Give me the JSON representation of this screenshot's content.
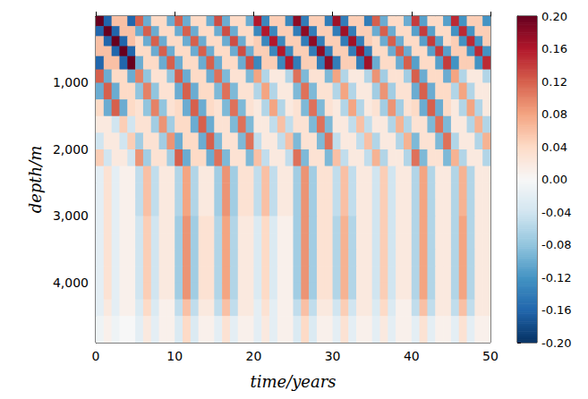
{
  "chart_data": {
    "type": "heatmap",
    "xlabel": "time/years",
    "ylabel": "depth/m",
    "xlim": [
      0,
      50
    ],
    "xticks": [
      0,
      10,
      20,
      30,
      40,
      50
    ],
    "ylim": [
      4900,
      0
    ],
    "yticks": [
      1000,
      2000,
      3000,
      4000
    ],
    "x_edges": [
      0,
      1,
      2,
      3,
      4,
      5,
      6,
      7,
      8,
      9,
      10,
      11,
      12,
      13,
      14,
      15,
      16,
      17,
      18,
      19,
      20,
      21,
      22,
      23,
      24,
      25,
      26,
      27,
      28,
      29,
      30,
      31,
      32,
      33,
      34,
      35,
      36,
      37,
      38,
      39,
      40,
      41,
      42,
      43,
      44,
      45,
      46,
      47,
      48,
      49,
      50
    ],
    "y_edges": [
      0,
      150,
      300,
      450,
      600,
      800,
      1000,
      1250,
      1500,
      1750,
      2000,
      2250,
      2500,
      2750,
      3000,
      3250,
      3500,
      3750,
      4000,
      4250,
      4500,
      4900
    ],
    "values": [
      [
        0.2,
        -0.16,
        0.06,
        0.06,
        -0.16,
        0.12,
        -0.1,
        0.04,
        0.04,
        -0.1,
        0.12,
        -0.1,
        0.04,
        0.04,
        -0.1,
        0.13,
        -0.1,
        0.04,
        0.04,
        -0.1,
        0.16,
        -0.13,
        0.05,
        0.05,
        -0.13,
        0.18,
        -0.14,
        0.05,
        0.05,
        -0.14,
        0.17,
        -0.14,
        0.05,
        0.05,
        -0.14,
        0.12,
        -0.1,
        0.04,
        0.04,
        -0.1,
        0.14,
        -0.11,
        0.04,
        0.04,
        -0.11,
        0.15,
        -0.12,
        0.05,
        0.05,
        -0.12
      ],
      [
        -0.16,
        0.2,
        -0.16,
        0.06,
        0.06,
        -0.1,
        0.12,
        -0.1,
        0.04,
        0.04,
        -0.1,
        0.12,
        -0.1,
        0.04,
        0.04,
        -0.1,
        0.13,
        -0.1,
        0.04,
        0.04,
        -0.13,
        0.16,
        -0.13,
        0.05,
        0.05,
        -0.14,
        0.18,
        -0.14,
        0.05,
        0.05,
        -0.14,
        0.17,
        -0.14,
        0.05,
        0.05,
        -0.1,
        0.12,
        -0.1,
        0.04,
        0.04,
        -0.11,
        0.14,
        -0.11,
        0.04,
        0.04,
        -0.12,
        0.15,
        -0.12,
        0.05,
        0.05
      ],
      [
        0.06,
        -0.16,
        0.2,
        -0.16,
        0.06,
        0.04,
        -0.1,
        0.12,
        -0.1,
        0.04,
        0.04,
        -0.1,
        0.12,
        -0.1,
        0.04,
        0.04,
        -0.1,
        0.13,
        -0.1,
        0.04,
        0.05,
        -0.13,
        0.16,
        -0.13,
        0.05,
        0.05,
        -0.14,
        0.18,
        -0.14,
        0.05,
        0.05,
        -0.14,
        0.17,
        -0.14,
        0.05,
        0.04,
        -0.1,
        0.12,
        -0.1,
        0.04,
        0.04,
        -0.11,
        0.14,
        -0.11,
        0.04,
        0.05,
        -0.12,
        0.15,
        -0.12,
        0.05
      ],
      [
        0.06,
        0.06,
        -0.16,
        0.2,
        -0.16,
        0.04,
        0.04,
        -0.1,
        0.12,
        -0.1,
        0.04,
        0.04,
        -0.1,
        0.12,
        -0.1,
        0.04,
        0.04,
        -0.1,
        0.13,
        -0.1,
        0.05,
        0.05,
        -0.13,
        0.16,
        -0.13,
        0.05,
        0.05,
        -0.14,
        0.18,
        -0.14,
        0.05,
        0.05,
        -0.14,
        0.17,
        -0.14,
        0.04,
        0.04,
        -0.1,
        0.12,
        -0.1,
        0.04,
        0.04,
        -0.11,
        0.14,
        -0.11,
        0.05,
        0.05,
        -0.12,
        0.15,
        -0.12
      ],
      [
        -0.16,
        0.06,
        0.06,
        -0.16,
        0.2,
        -0.1,
        0.04,
        0.04,
        -0.1,
        0.12,
        -0.1,
        0.04,
        0.04,
        -0.1,
        0.12,
        -0.1,
        0.04,
        0.04,
        -0.1,
        0.13,
        -0.13,
        0.05,
        0.05,
        -0.13,
        0.16,
        -0.14,
        0.05,
        0.05,
        -0.14,
        0.18,
        -0.14,
        0.05,
        0.05,
        -0.14,
        0.17,
        -0.1,
        0.04,
        0.04,
        -0.1,
        0.12,
        -0.11,
        0.04,
        0.04,
        -0.11,
        0.14,
        -0.12,
        0.05,
        0.05,
        -0.12,
        0.15
      ],
      [
        0.12,
        -0.1,
        0.04,
        0.04,
        -0.1,
        0.1,
        -0.08,
        0.03,
        0.03,
        -0.08,
        0.12,
        -0.1,
        0.04,
        0.04,
        -0.1,
        0.11,
        -0.09,
        0.03,
        0.03,
        -0.09,
        0.08,
        -0.06,
        0.02,
        0.02,
        -0.06,
        0.11,
        -0.09,
        0.03,
        0.03,
        -0.09,
        0.08,
        -0.06,
        0.02,
        0.02,
        -0.06,
        0.09,
        -0.07,
        0.03,
        0.03,
        -0.07,
        0.12,
        -0.1,
        0.04,
        0.04,
        -0.1,
        0.08,
        -0.06,
        0.02,
        0.02,
        -0.06
      ],
      [
        -0.1,
        0.12,
        -0.1,
        0.04,
        0.04,
        -0.08,
        0.1,
        -0.08,
        0.03,
        0.03,
        -0.1,
        0.12,
        -0.1,
        0.04,
        0.04,
        -0.09,
        0.11,
        -0.09,
        0.03,
        0.03,
        -0.06,
        0.08,
        -0.06,
        0.02,
        0.02,
        -0.09,
        0.11,
        -0.09,
        0.03,
        0.03,
        -0.06,
        0.08,
        -0.06,
        0.02,
        0.02,
        -0.07,
        0.09,
        -0.07,
        0.03,
        0.03,
        -0.1,
        0.12,
        -0.1,
        0.04,
        0.04,
        -0.06,
        0.08,
        -0.06,
        0.02,
        0.02
      ],
      [
        0.04,
        -0.1,
        0.12,
        -0.1,
        0.04,
        0.03,
        -0.08,
        0.1,
        -0.08,
        0.03,
        0.04,
        -0.1,
        0.12,
        -0.1,
        0.04,
        0.03,
        -0.09,
        0.11,
        -0.09,
        0.03,
        0.02,
        -0.06,
        0.08,
        -0.06,
        0.02,
        0.03,
        -0.09,
        0.11,
        -0.09,
        0.03,
        0.02,
        -0.06,
        0.08,
        -0.06,
        0.02,
        0.03,
        -0.07,
        0.09,
        -0.07,
        0.03,
        0.04,
        -0.1,
        0.12,
        -0.1,
        0.04,
        0.02,
        -0.06,
        0.08,
        -0.06,
        0.02
      ],
      [
        0.02,
        0.02,
        -0.04,
        0.05,
        -0.04,
        0.03,
        0.03,
        -0.07,
        0.09,
        -0.07,
        0.04,
        0.04,
        -0.1,
        0.12,
        -0.1,
        0.03,
        0.03,
        -0.09,
        0.11,
        -0.09,
        0.02,
        0.02,
        -0.05,
        0.06,
        -0.05,
        0.03,
        0.03,
        -0.09,
        0.11,
        -0.09,
        0.02,
        0.02,
        -0.05,
        0.06,
        -0.05,
        0.02,
        0.02,
        -0.06,
        0.07,
        -0.06,
        0.03,
        0.03,
        -0.09,
        0.11,
        -0.09,
        0.02,
        0.02,
        -0.06,
        0.07,
        -0.06
      ],
      [
        -0.04,
        0.02,
        0.02,
        -0.04,
        0.05,
        -0.07,
        0.03,
        0.03,
        -0.07,
        0.09,
        -0.1,
        0.04,
        0.04,
        -0.1,
        0.12,
        -0.09,
        0.03,
        0.03,
        -0.09,
        0.11,
        -0.05,
        0.02,
        0.02,
        -0.05,
        0.06,
        -0.09,
        0.03,
        0.03,
        -0.09,
        0.11,
        -0.05,
        0.02,
        0.02,
        -0.05,
        0.06,
        -0.06,
        0.02,
        0.02,
        -0.06,
        0.07,
        -0.09,
        0.03,
        0.03,
        -0.09,
        0.11,
        -0.06,
        0.02,
        0.02,
        -0.06,
        0.07
      ],
      [
        0.05,
        -0.04,
        0.02,
        0.02,
        -0.04,
        0.09,
        -0.07,
        0.03,
        0.03,
        -0.07,
        0.12,
        -0.1,
        0.04,
        0.04,
        -0.1,
        0.11,
        -0.09,
        0.03,
        0.03,
        -0.09,
        0.06,
        -0.05,
        0.02,
        0.02,
        -0.05,
        0.11,
        -0.09,
        0.03,
        0.03,
        -0.09,
        0.06,
        -0.05,
        0.02,
        0.02,
        -0.05,
        0.07,
        -0.06,
        0.02,
        0.02,
        -0.06,
        0.11,
        -0.09,
        0.03,
        0.03,
        -0.09,
        0.07,
        -0.06,
        0.02,
        0.02,
        -0.06
      ],
      [
        -0.02,
        0.03,
        -0.02,
        0.01,
        0.01,
        -0.05,
        0.06,
        -0.05,
        0.02,
        0.02,
        -0.06,
        0.08,
        -0.06,
        0.02,
        0.02,
        -0.07,
        0.09,
        -0.07,
        0.03,
        0.03,
        -0.05,
        0.06,
        -0.05,
        0.02,
        0.02,
        -0.07,
        0.09,
        -0.07,
        0.03,
        0.03,
        -0.05,
        0.06,
        -0.05,
        0.02,
        0.02,
        -0.04,
        0.05,
        -0.04,
        0.02,
        0.02,
        -0.06,
        0.08,
        -0.06,
        0.02,
        0.02,
        -0.06,
        0.07,
        -0.06,
        0.02,
        0.02
      ],
      [
        -0.02,
        0.03,
        -0.02,
        0.01,
        0.01,
        -0.05,
        0.06,
        -0.05,
        0.02,
        0.02,
        -0.06,
        0.08,
        -0.06,
        0.02,
        0.02,
        -0.07,
        0.09,
        -0.07,
        0.03,
        0.03,
        -0.05,
        0.06,
        -0.05,
        0.02,
        0.02,
        -0.07,
        0.09,
        -0.07,
        0.03,
        0.03,
        -0.05,
        0.06,
        -0.05,
        0.02,
        0.02,
        -0.04,
        0.05,
        -0.04,
        0.02,
        0.02,
        -0.06,
        0.08,
        -0.06,
        0.02,
        0.02,
        -0.06,
        0.07,
        -0.06,
        0.02,
        0.02
      ],
      [
        -0.02,
        0.03,
        -0.02,
        0.01,
        0.01,
        -0.05,
        0.06,
        -0.05,
        0.02,
        0.02,
        -0.06,
        0.08,
        -0.06,
        0.02,
        0.02,
        -0.07,
        0.09,
        -0.07,
        0.03,
        0.03,
        -0.05,
        0.06,
        -0.05,
        0.02,
        0.02,
        -0.07,
        0.09,
        -0.07,
        0.03,
        0.03,
        -0.05,
        0.06,
        -0.05,
        0.02,
        0.02,
        -0.04,
        0.05,
        -0.04,
        0.02,
        0.02,
        -0.06,
        0.08,
        -0.06,
        0.02,
        0.02,
        -0.06,
        0.07,
        -0.06,
        0.02,
        0.02
      ],
      [
        -0.02,
        0.03,
        -0.02,
        0.01,
        0.01,
        -0.04,
        0.05,
        -0.04,
        0.02,
        0.02,
        -0.07,
        0.09,
        -0.07,
        0.03,
        0.03,
        -0.06,
        0.08,
        -0.06,
        0.02,
        0.02,
        -0.03,
        0.04,
        -0.03,
        0.01,
        0.01,
        -0.07,
        0.09,
        -0.07,
        0.03,
        0.03,
        -0.06,
        0.07,
        -0.06,
        0.02,
        0.02,
        -0.04,
        0.05,
        -0.04,
        0.02,
        0.02,
        -0.06,
        0.08,
        -0.06,
        0.02,
        0.02,
        -0.06,
        0.08,
        -0.06,
        0.02,
        0.02
      ],
      [
        -0.02,
        0.03,
        -0.02,
        0.01,
        0.01,
        -0.04,
        0.05,
        -0.04,
        0.02,
        0.02,
        -0.07,
        0.09,
        -0.07,
        0.03,
        0.03,
        -0.06,
        0.08,
        -0.06,
        0.02,
        0.02,
        -0.03,
        0.04,
        -0.03,
        0.01,
        0.01,
        -0.07,
        0.09,
        -0.07,
        0.03,
        0.03,
        -0.06,
        0.07,
        -0.06,
        0.02,
        0.02,
        -0.04,
        0.05,
        -0.04,
        0.02,
        0.02,
        -0.06,
        0.08,
        -0.06,
        0.02,
        0.02,
        -0.06,
        0.08,
        -0.06,
        0.02,
        0.02
      ],
      [
        -0.02,
        0.03,
        -0.02,
        0.01,
        0.01,
        -0.04,
        0.05,
        -0.04,
        0.02,
        0.02,
        -0.07,
        0.09,
        -0.07,
        0.03,
        0.03,
        -0.06,
        0.08,
        -0.06,
        0.02,
        0.02,
        -0.03,
        0.04,
        -0.03,
        0.01,
        0.01,
        -0.07,
        0.09,
        -0.07,
        0.03,
        0.03,
        -0.06,
        0.07,
        -0.06,
        0.02,
        0.02,
        -0.04,
        0.05,
        -0.04,
        0.02,
        0.02,
        -0.06,
        0.08,
        -0.06,
        0.02,
        0.02,
        -0.06,
        0.08,
        -0.06,
        0.02,
        0.02
      ],
      [
        -0.02,
        0.03,
        -0.02,
        0.01,
        0.01,
        -0.04,
        0.05,
        -0.04,
        0.02,
        0.02,
        -0.07,
        0.09,
        -0.07,
        0.03,
        0.03,
        -0.06,
        0.08,
        -0.06,
        0.02,
        0.02,
        -0.03,
        0.04,
        -0.03,
        0.01,
        0.01,
        -0.07,
        0.09,
        -0.07,
        0.03,
        0.03,
        -0.06,
        0.07,
        -0.06,
        0.02,
        0.02,
        -0.04,
        0.05,
        -0.04,
        0.02,
        0.02,
        -0.06,
        0.08,
        -0.06,
        0.02,
        0.02,
        -0.06,
        0.08,
        -0.06,
        0.02,
        0.02
      ],
      [
        -0.02,
        0.03,
        -0.02,
        0.01,
        0.01,
        -0.04,
        0.05,
        -0.04,
        0.02,
        0.02,
        -0.07,
        0.09,
        -0.07,
        0.03,
        0.03,
        -0.06,
        0.08,
        -0.06,
        0.02,
        0.02,
        -0.03,
        0.04,
        -0.03,
        0.01,
        0.01,
        -0.07,
        0.09,
        -0.07,
        0.03,
        0.03,
        -0.06,
        0.07,
        -0.06,
        0.02,
        0.02,
        -0.04,
        0.05,
        -0.04,
        0.02,
        0.02,
        -0.06,
        0.08,
        -0.06,
        0.02,
        0.02,
        -0.06,
        0.08,
        -0.06,
        0.02,
        0.02
      ],
      [
        -0.02,
        0.02,
        -0.02,
        0.01,
        0.01,
        -0.03,
        0.04,
        -0.03,
        0.01,
        0.01,
        -0.05,
        0.06,
        -0.05,
        0.02,
        0.02,
        -0.05,
        0.06,
        -0.05,
        0.02,
        0.02,
        -0.02,
        0.03,
        -0.02,
        0.01,
        0.01,
        -0.05,
        0.06,
        -0.05,
        0.02,
        0.02,
        -0.04,
        0.05,
        -0.04,
        0.02,
        0.02,
        -0.03,
        0.04,
        -0.03,
        0.01,
        0.01,
        -0.05,
        0.06,
        -0.05,
        0.02,
        0.02,
        -0.05,
        0.06,
        -0.05,
        0.02,
        0.02
      ],
      [
        -0.01,
        0.01,
        -0.01,
        0.0,
        0.0,
        -0.02,
        0.02,
        -0.02,
        0.01,
        0.01,
        -0.03,
        0.04,
        -0.03,
        0.01,
        0.01,
        -0.02,
        0.03,
        -0.02,
        0.01,
        0.01,
        -0.02,
        0.02,
        -0.02,
        0.01,
        0.01,
        -0.03,
        0.04,
        -0.03,
        0.01,
        0.01,
        -0.02,
        0.03,
        -0.02,
        0.01,
        0.01,
        -0.02,
        0.02,
        -0.02,
        0.01,
        0.01,
        -0.02,
        0.03,
        -0.02,
        0.01,
        0.01,
        -0.02,
        0.03,
        -0.02,
        0.01,
        0.01
      ]
    ],
    "colorbar": {
      "range": [
        -0.2,
        0.2
      ],
      "ticks": [
        {
          "value": -0.2,
          "label": "-0.20"
        },
        {
          "value": -0.16,
          "label": "-0.16"
        },
        {
          "value": -0.12,
          "label": "-0.12"
        },
        {
          "value": -0.08,
          "label": "-0.08"
        },
        {
          "value": -0.04,
          "label": "-0.04"
        },
        {
          "value": 0,
          "label": "0.00"
        },
        {
          "value": 0.04,
          "label": "0.04"
        },
        {
          "value": 0.08,
          "label": "0.08"
        },
        {
          "value": 0.12,
          "label": "0.12"
        },
        {
          "value": 0.16,
          "label": "0.16"
        },
        {
          "value": 0.2,
          "label": "0.20"
        }
      ]
    }
  }
}
